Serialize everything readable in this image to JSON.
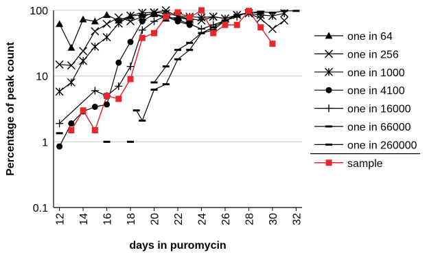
{
  "chart_data": {
    "type": "line",
    "title": "",
    "xlabel": "days in puromycin",
    "ylabel": "Percentage of peak count",
    "x_ticks": [
      12,
      14,
      16,
      18,
      20,
      22,
      24,
      26,
      28,
      30,
      32
    ],
    "xlim": [
      11.5,
      32.5
    ],
    "y_scale": "log",
    "y_ticks": [
      {
        "value": 0.1,
        "label": "0.1"
      },
      {
        "value": 1,
        "label": "1"
      },
      {
        "value": 10,
        "label": "10"
      },
      {
        "value": 100,
        "label": "100"
      }
    ],
    "ylim": [
      0.1,
      100
    ],
    "grid": "horizontal",
    "legend_position": "right",
    "series": [
      {
        "name": "one in 64",
        "marker": "triangle",
        "color": "#000000",
        "points": [
          [
            12,
            62
          ],
          [
            13,
            27
          ],
          [
            14,
            73
          ],
          [
            15,
            68
          ],
          [
            16,
            85
          ],
          [
            17,
            70
          ],
          [
            18,
            82
          ],
          [
            19,
            85
          ],
          [
            20,
            88
          ],
          [
            21,
            75
          ],
          [
            22,
            78
          ],
          [
            23,
            72
          ]
        ]
      },
      {
        "name": "one in 256",
        "marker": "x",
        "color": "#000000",
        "points": [
          [
            12,
            15
          ],
          [
            13,
            14.5
          ],
          [
            14,
            24
          ],
          [
            15,
            48
          ],
          [
            16,
            62
          ],
          [
            17,
            78
          ],
          [
            18,
            68
          ],
          [
            19,
            80
          ],
          [
            20,
            92
          ],
          [
            21,
            100
          ],
          [
            22,
            80
          ],
          [
            23,
            75
          ],
          [
            24,
            70
          ],
          [
            25,
            80
          ],
          [
            26,
            75
          ],
          [
            27,
            85
          ],
          [
            28,
            90
          ],
          [
            29,
            75
          ],
          [
            30,
            52
          ],
          [
            31,
            70
          ]
        ]
      },
      {
        "name": "one in 1000",
        "marker": "asterisk",
        "color": "#000000",
        "points": [
          [
            12,
            5.8
          ],
          [
            13,
            8
          ],
          [
            14,
            17
          ],
          [
            15,
            28
          ],
          [
            16,
            39
          ],
          [
            17,
            63
          ],
          [
            18,
            83
          ],
          [
            19,
            92
          ],
          [
            20,
            93
          ],
          [
            21,
            90
          ],
          [
            22,
            82
          ],
          [
            23,
            80
          ],
          [
            24,
            78
          ],
          [
            25,
            80
          ],
          [
            26,
            75
          ],
          [
            27,
            85
          ],
          [
            28,
            90
          ],
          [
            29,
            85
          ],
          [
            30,
            82
          ],
          [
            31,
            90
          ]
        ]
      },
      {
        "name": "one in 4100",
        "marker": "circle",
        "color": "#000000",
        "points": [
          [
            12,
            0.85
          ],
          [
            13,
            1.9
          ],
          [
            14,
            2.9
          ],
          [
            15,
            3.4
          ],
          [
            16,
            3.7
          ],
          [
            17,
            16
          ],
          [
            18,
            33
          ],
          [
            19,
            68
          ],
          [
            20,
            88
          ],
          [
            21,
            80
          ],
          [
            22,
            68
          ],
          [
            23,
            60
          ]
        ]
      },
      {
        "name": "one in 16000",
        "marker": "plus",
        "color": "#000000",
        "points": [
          [
            12,
            1.9
          ],
          [
            15,
            6
          ],
          [
            16,
            5
          ],
          [
            17,
            7
          ],
          [
            18,
            14
          ],
          [
            19,
            50
          ],
          [
            20,
            68
          ],
          [
            21,
            82
          ],
          [
            22,
            72
          ],
          [
            23,
            62
          ],
          [
            24,
            52
          ],
          [
            25,
            60
          ],
          [
            26,
            70
          ],
          [
            27,
            80
          ]
        ]
      },
      {
        "name": "one in 66000",
        "marker": "dash",
        "color": "#000000",
        "points": [
          [
            20,
            8
          ],
          [
            21,
            14
          ],
          [
            22,
            25
          ],
          [
            23,
            32
          ],
          [
            24,
            45
          ],
          [
            25,
            50
          ],
          [
            26,
            70
          ],
          [
            27,
            80
          ],
          [
            28,
            95
          ],
          [
            29,
            90
          ]
        ]
      },
      {
        "name": "one in 260000",
        "marker": "dash",
        "color": "#000000",
        "points": [
          [
            18.5,
            3
          ],
          [
            19,
            2.1
          ],
          [
            20,
            6.2
          ],
          [
            21,
            7.5
          ],
          [
            22,
            18
          ],
          [
            23,
            25
          ],
          [
            24,
            45
          ],
          [
            25,
            55
          ],
          [
            26,
            70
          ],
          [
            27,
            85
          ],
          [
            28,
            92
          ],
          [
            29,
            95
          ],
          [
            30,
            92
          ],
          [
            31,
            98
          ],
          [
            32,
            98
          ]
        ]
      },
      {
        "name": "sample",
        "marker": "square",
        "color": "#e8262d",
        "points": [
          [
            13,
            1.5
          ],
          [
            14,
            3
          ],
          [
            15,
            1.5
          ],
          [
            16,
            5
          ],
          [
            17,
            4.5
          ],
          [
            18,
            9
          ],
          [
            19,
            38
          ],
          [
            20,
            45
          ],
          [
            21,
            80
          ],
          [
            22,
            93
          ],
          [
            23,
            78
          ],
          [
            24,
            100
          ],
          [
            25,
            45
          ],
          [
            26,
            60
          ],
          [
            27,
            60
          ],
          [
            28,
            98
          ],
          [
            29,
            55
          ],
          [
            30,
            31
          ]
        ]
      }
    ],
    "unconnected_marks": [
      {
        "series": "one in 66000",
        "marker": "dash",
        "points": [
          [
            12,
            1.35
          ],
          [
            16,
            1
          ],
          [
            18,
            1
          ]
        ]
      }
    ]
  }
}
